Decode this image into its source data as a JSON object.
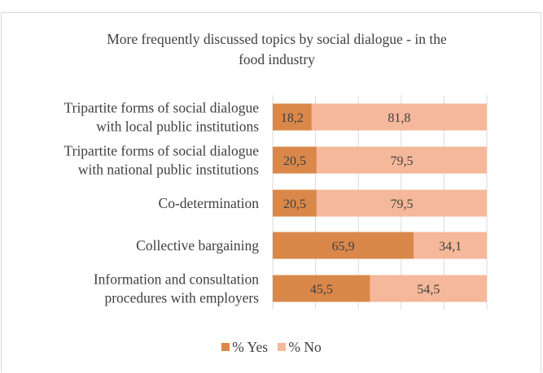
{
  "chart_data": {
    "type": "bar",
    "orientation": "horizontal",
    "stacked": true,
    "title_line1": "More frequently discussed topics by social dialogue - in the",
    "title_line2": "food industry",
    "categories": [
      [
        "Tripartite forms of social dialogue",
        "with local public institutions"
      ],
      [
        "Tripartite forms of social dialogue",
        "with national public institutions"
      ],
      [
        "Co-determination"
      ],
      [
        "Collective bargaining"
      ],
      [
        "Information and consultation",
        "procedures with employers"
      ]
    ],
    "series": [
      {
        "name": "% Yes",
        "color": "#d9884a",
        "values": [
          18.2,
          20.5,
          20.5,
          65.9,
          45.5
        ],
        "labels": [
          "18,2",
          "20,5",
          "20,5",
          "65,9",
          "45,5"
        ]
      },
      {
        "name": "% No",
        "color": "#f5b89a",
        "values": [
          81.8,
          79.5,
          79.5,
          34.1,
          54.5
        ],
        "labels": [
          "81,8",
          "79,5",
          "79,5",
          "34,1",
          "54,5"
        ]
      }
    ],
    "xlim": [
      0,
      100
    ],
    "grid": true,
    "legend": "bottom"
  }
}
